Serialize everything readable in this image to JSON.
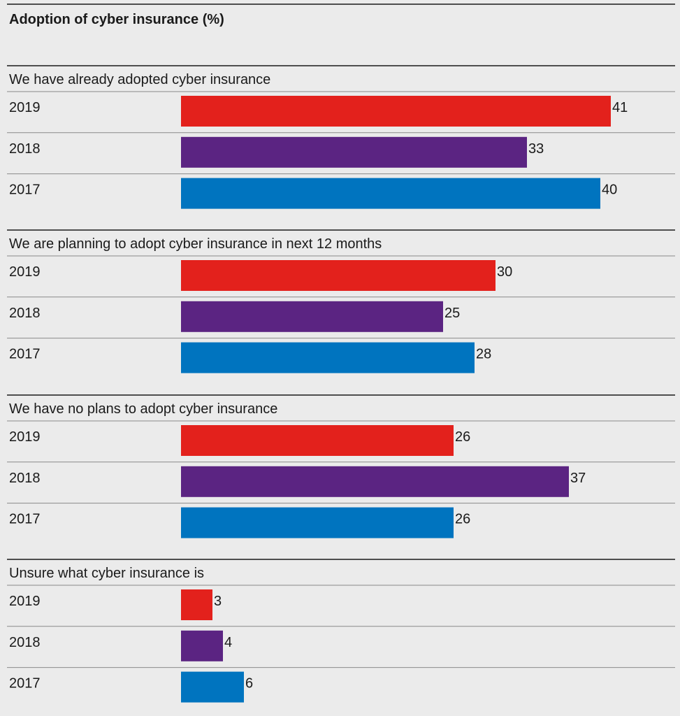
{
  "chart_data": {
    "type": "bar",
    "orientation": "horizontal",
    "title": "Adoption of cyber insurance (%)",
    "xlim": [
      0,
      47
    ],
    "grid": false,
    "legend": "none",
    "colors": {
      "2019": "#e3211c",
      "2018": "#5b2482",
      "2017": "#0074bf"
    },
    "groups": [
      {
        "label": "We have already adopted cyber insurance",
        "bars": [
          {
            "year": "2019",
            "value": 41
          },
          {
            "year": "2018",
            "value": 33
          },
          {
            "year": "2017",
            "value": 40
          }
        ]
      },
      {
        "label": "We are planning to adopt cyber insurance in next 12 months",
        "bars": [
          {
            "year": "2019",
            "value": 30
          },
          {
            "year": "2018",
            "value": 25
          },
          {
            "year": "2017",
            "value": 28
          }
        ]
      },
      {
        "label": "We have no plans to adopt cyber insurance",
        "bars": [
          {
            "year": "2019",
            "value": 26
          },
          {
            "year": "2018",
            "value": 37
          },
          {
            "year": "2017",
            "value": 26
          }
        ]
      },
      {
        "label": "Unsure what cyber insurance is",
        "bars": [
          {
            "year": "2019",
            "value": 3
          },
          {
            "year": "2018",
            "value": 4
          },
          {
            "year": "2017",
            "value": 6
          }
        ]
      }
    ]
  }
}
